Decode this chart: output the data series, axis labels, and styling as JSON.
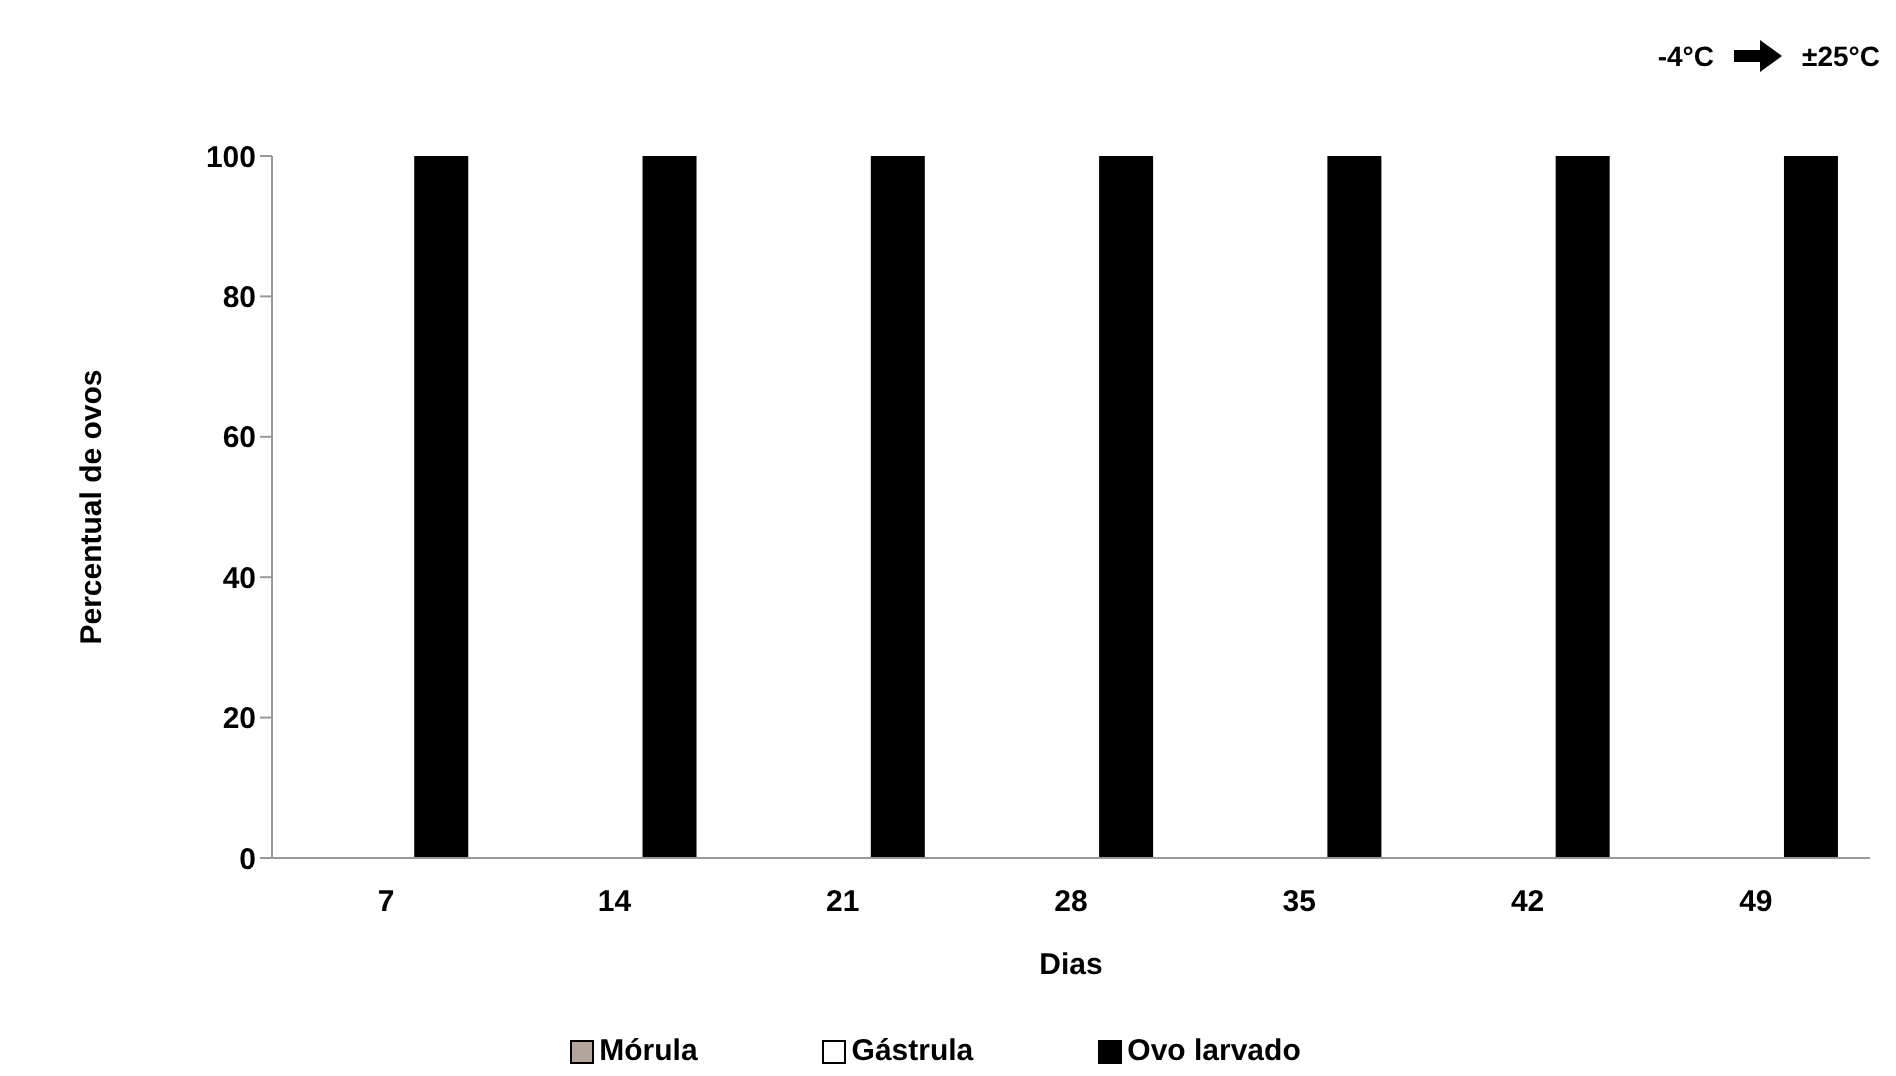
{
  "chart_data": {
    "type": "bar",
    "xlabel": "Dias",
    "ylabel": "Percentual de  ovos",
    "annotations": [
      "-4°C",
      "±25°C"
    ],
    "categories": [
      "7",
      "14",
      "21",
      "28",
      "35",
      "42",
      "49"
    ],
    "series": [
      {
        "name": "Mórula",
        "color": "#b3a59a",
        "values": [
          0,
          0,
          0,
          0,
          0,
          0,
          0
        ]
      },
      {
        "name": "Gástrula",
        "color": "#ffffff",
        "values": [
          0,
          0,
          0,
          0,
          0,
          0,
          0
        ]
      },
      {
        "name": "Ovo larvado",
        "color": "#000000",
        "values": [
          100,
          100,
          100,
          100,
          100,
          100,
          100
        ]
      }
    ],
    "ylim": [
      0,
      100
    ],
    "yticks": [
      0,
      20,
      40,
      60,
      80,
      100
    ],
    "grid": false,
    "legend": "bottom"
  }
}
